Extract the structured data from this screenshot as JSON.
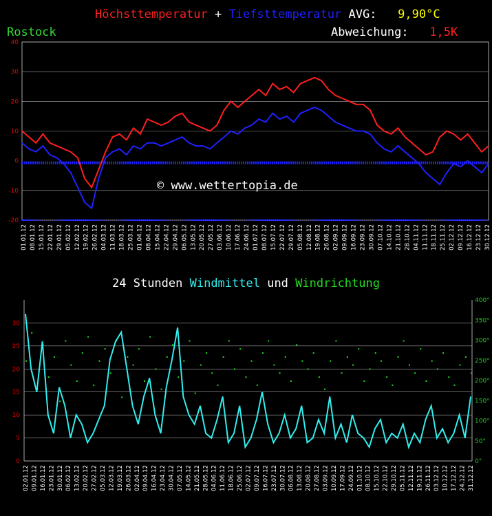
{
  "header": {
    "max_label": "Höchsttemperatur",
    "plus": " + ",
    "min_label": "Tiefsttemperatur",
    "avg_label": " AVG:",
    "avg_value": "9,90°C",
    "station": "Rostock",
    "deviation_label": "Abweichung:",
    "deviation_value": "1,5K"
  },
  "copyright": "© www.wettertopia.de",
  "wind_header": {
    "prefix": "24 Stunden ",
    "mean_label": "Windmittel",
    "conj": " und ",
    "dir_label": "Windrichtung"
  },
  "colors": {
    "max": "#ff2020",
    "min": "#2020ff",
    "avg": "#ffff00",
    "station": "#33dd33",
    "wind_mean": "#33eeee",
    "wind_dir": "#22dd22",
    "grid": "#aaaaaa",
    "axis_left": "#dd0000"
  },
  "chart_data": [
    {
      "type": "line",
      "ylim": [
        -20,
        40
      ],
      "yticks": [
        "40",
        "30",
        "20",
        "10",
        "0",
        "-10",
        "-20"
      ],
      "x_labels": [
        "01.01.12",
        "08.01.12",
        "15.01.12",
        "22.01.12",
        "29.01.12",
        "05.02.12",
        "12.02.12",
        "19.02.12",
        "26.02.12",
        "04.03.12",
        "11.03.12",
        "18.03.12",
        "25.03.12",
        "01.04.12",
        "08.04.12",
        "15.04.12",
        "22.04.12",
        "29.04.12",
        "06.05.12",
        "13.05.12",
        "20.05.12",
        "27.05.12",
        "03.06.12",
        "10.06.12",
        "17.06.12",
        "24.06.12",
        "01.07.12",
        "08.07.12",
        "15.07.12",
        "22.07.12",
        "29.07.12",
        "05.08.12",
        "12.08.12",
        "19.08.12",
        "26.08.12",
        "02.09.12",
        "09.09.12",
        "16.09.12",
        "23.09.12",
        "30.09.12",
        "07.10.12",
        "14.10.12",
        "21.10.12",
        "28.10.12",
        "04.11.12",
        "11.11.12",
        "18.11.12",
        "25.11.12",
        "02.12.12",
        "09.12.12",
        "16.12.12",
        "23.12.12",
        "30.12.12"
      ],
      "series": [
        {
          "name": "Höchsttemperatur",
          "values": [
            10,
            8,
            6,
            9,
            6,
            5,
            4,
            3,
            1,
            -6,
            -9,
            -3,
            3,
            8,
            9,
            7,
            11,
            9,
            14,
            13,
            12,
            13,
            15,
            16,
            13,
            12,
            11,
            10,
            12,
            17,
            20,
            18,
            20,
            22,
            24,
            22,
            26,
            24,
            25,
            23,
            26,
            27,
            28,
            27,
            24,
            22,
            21,
            20,
            19,
            19,
            17,
            12,
            10,
            9,
            11,
            8,
            6,
            4,
            2,
            3,
            8,
            10,
            9,
            7,
            9,
            6,
            3,
            5
          ]
        },
        {
          "name": "Tiefsttemperatur",
          "values": [
            6,
            4,
            3,
            5,
            2,
            1,
            -1,
            -4,
            -9,
            -14,
            -16,
            -6,
            1,
            3,
            4,
            2,
            5,
            4,
            6,
            6,
            5,
            6,
            7,
            8,
            6,
            5,
            5,
            4,
            6,
            8,
            10,
            9,
            11,
            12,
            14,
            13,
            16,
            14,
            15,
            13,
            16,
            17,
            18,
            17,
            15,
            13,
            12,
            11,
            10,
            10,
            9,
            6,
            4,
            3,
            5,
            3,
            1,
            -1,
            -4,
            -6,
            -8,
            -4,
            -1,
            -2,
            0,
            -2,
            -4,
            -1
          ]
        }
      ],
      "baseline_label": "0"
    },
    {
      "type": "line",
      "ylim_left": [
        0,
        35
      ],
      "yticks_left": [
        "30",
        "25",
        "20",
        "15",
        "10",
        "5",
        "0"
      ],
      "ylim_right": [
        0,
        400
      ],
      "yticks_right": [
        "400°",
        "350°",
        "300°",
        "250°",
        "200°",
        "150°",
        "100°",
        "50°",
        "0°"
      ],
      "x_labels": [
        "02.01.12",
        "09.01.12",
        "16.01.12",
        "23.01.12",
        "30.01.12",
        "06.02.12",
        "13.02.12",
        "20.02.12",
        "27.02.12",
        "05.03.12",
        "12.03.12",
        "19.03.12",
        "26.03.12",
        "02.04.12",
        "09.04.12",
        "16.04.12",
        "23.04.12",
        "30.04.12",
        "07.05.12",
        "14.05.12",
        "21.05.12",
        "28.05.12",
        "04.06.12",
        "11.06.12",
        "18.06.12",
        "25.06.12",
        "02.07.12",
        "09.07.12",
        "16.07.12",
        "23.07.12",
        "30.07.12",
        "06.08.12",
        "13.08.12",
        "20.08.12",
        "27.08.12",
        "03.09.12",
        "10.09.12",
        "17.09.12",
        "24.09.12",
        "01.10.12",
        "08.10.12",
        "15.10.12",
        "22.10.12",
        "29.10.12",
        "05.11.12",
        "12.11.12",
        "19.11.12",
        "26.11.12",
        "03.12.12",
        "10.12.12",
        "17.12.12",
        "24.12.12",
        "31.12.12"
      ],
      "series": [
        {
          "name": "Windmittel",
          "axis": "left",
          "values": [
            32,
            20,
            15,
            26,
            10,
            6,
            16,
            12,
            5,
            10,
            8,
            4,
            6,
            9,
            12,
            22,
            26,
            28,
            20,
            12,
            8,
            14,
            18,
            10,
            6,
            16,
            22,
            29,
            14,
            10,
            8,
            12,
            6,
            5,
            9,
            14,
            4,
            6,
            12,
            3,
            5,
            9,
            15,
            8,
            4,
            6,
            10,
            5,
            7,
            12,
            4,
            5,
            9,
            6,
            14,
            5,
            8,
            4,
            10,
            6,
            5,
            3,
            7,
            9,
            4,
            6,
            5,
            8,
            3,
            6,
            4,
            9,
            12,
            5,
            7,
            4,
            6,
            10,
            5,
            14
          ]
        },
        {
          "name": "Windrichtung",
          "axis": "right",
          "values": [
            250,
            320,
            180,
            290,
            210,
            260,
            150,
            300,
            240,
            200,
            270,
            310,
            190,
            250,
            280,
            220,
            300,
            160,
            260,
            240,
            280,
            200,
            310,
            230,
            180,
            260,
            290,
            210,
            250,
            300,
            170,
            240,
            270,
            220,
            190,
            260,
            300,
            230,
            280,
            210,
            250,
            190,
            270,
            300,
            240,
            220,
            260,
            200,
            290,
            250,
            230,
            270,
            210,
            180,
            250,
            300,
            220,
            260,
            240,
            280,
            200,
            230,
            270,
            250,
            210,
            190,
            260,
            300,
            240,
            220,
            280,
            200,
            250,
            230,
            270,
            210,
            190,
            240,
            260,
            220
          ]
        }
      ]
    }
  ]
}
